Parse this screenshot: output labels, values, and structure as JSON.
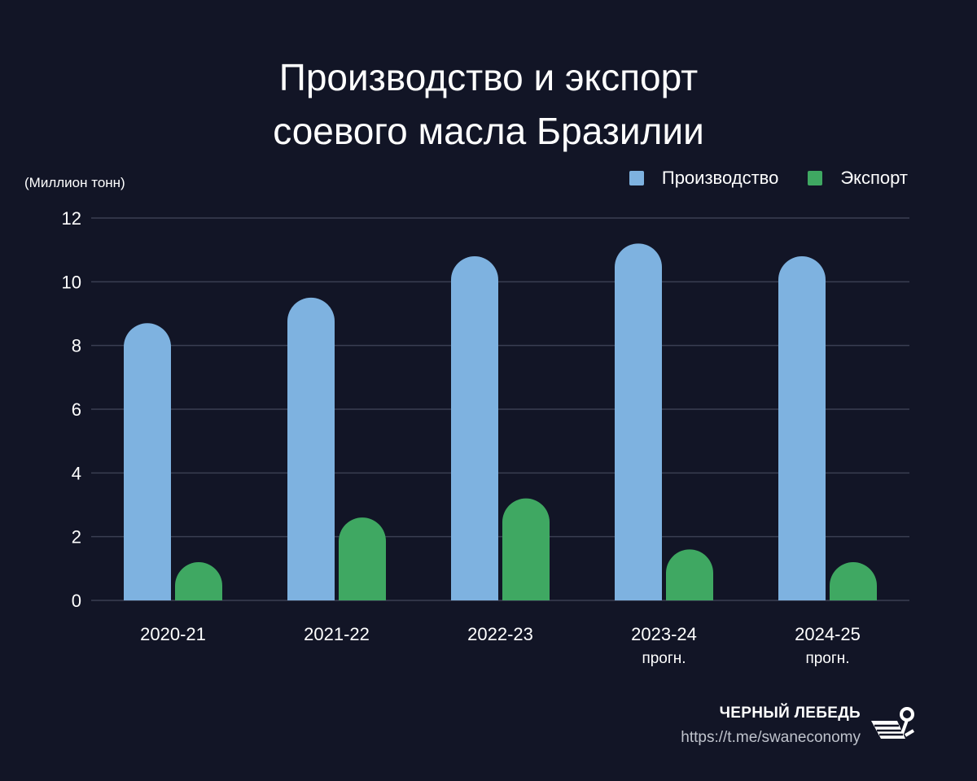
{
  "title": {
    "line1": "Производство и экспорт",
    "line2": "соевого масла Бразилии"
  },
  "unit_label": "(Миллион тонн)",
  "footer": {
    "brand": "ЧЕРНЫЙ ЛЕБЕДЬ",
    "link": "https://t.me/swaneconomy",
    "logo_icon": "swan-logo-icon"
  },
  "colors": {
    "background": "#121526",
    "production": "#7eb2e0",
    "export": "#3fa862",
    "grid": "#3a3e52"
  },
  "chart_data": {
    "type": "bar",
    "title": "Производство и экспорт соевого масла Бразилии",
    "ylabel": "(Миллион тонн)",
    "xlabel": "",
    "ylim": [
      0,
      12
    ],
    "yticks": [
      0,
      2,
      4,
      6,
      8,
      10,
      12
    ],
    "grid": true,
    "legend_position": "top-right",
    "categories": [
      [
        "2020-21"
      ],
      [
        "2021-22"
      ],
      [
        "2022-23"
      ],
      [
        "2023-24",
        "прогн."
      ],
      [
        "2024-25",
        "прогн."
      ]
    ],
    "series": [
      {
        "name": "Производство",
        "color": "#7eb2e0",
        "values": [
          8.7,
          9.5,
          10.8,
          11.2,
          10.8
        ]
      },
      {
        "name": "Экспорт",
        "color": "#3fa862",
        "values": [
          1.2,
          2.6,
          3.2,
          1.6,
          1.2
        ]
      }
    ]
  }
}
